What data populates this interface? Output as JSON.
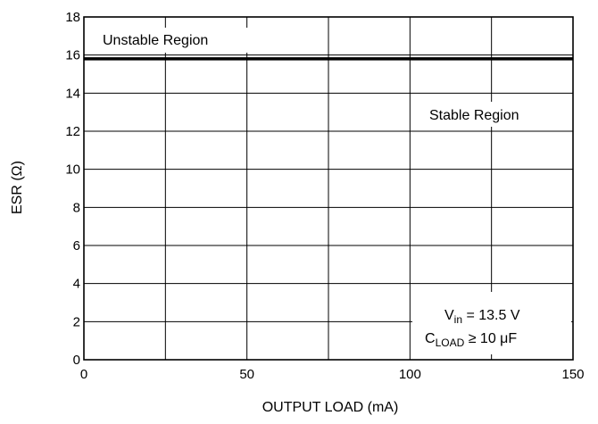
{
  "chart_data": {
    "type": "line",
    "title": "",
    "xlabel": "OUTPUT LOAD (mA)",
    "ylabel": "ESR (Ω)",
    "xlim": [
      0,
      150
    ],
    "ylim": [
      0,
      18
    ],
    "x_ticks": [
      0,
      50,
      100,
      150
    ],
    "y_ticks": [
      0,
      2,
      4,
      6,
      8,
      10,
      12,
      14,
      16,
      18
    ],
    "x_grid": [
      25,
      50,
      75,
      100,
      125
    ],
    "y_grid": [
      2,
      4,
      6,
      8,
      10,
      12,
      14,
      16
    ],
    "grid": true,
    "series": [
      {
        "x": [
          0,
          150
        ],
        "y": [
          15.8,
          15.8
        ]
      }
    ],
    "regions": {
      "unstable": "Unstable Region",
      "stable": "Stable Region"
    },
    "conditions": {
      "vin_main": "V",
      "vin_sub": "in",
      "vin_value": " = 13.5 V",
      "cload_main": "C",
      "cload_sub": "LOAD",
      "cload_value": " ≥ 10 μF"
    }
  }
}
